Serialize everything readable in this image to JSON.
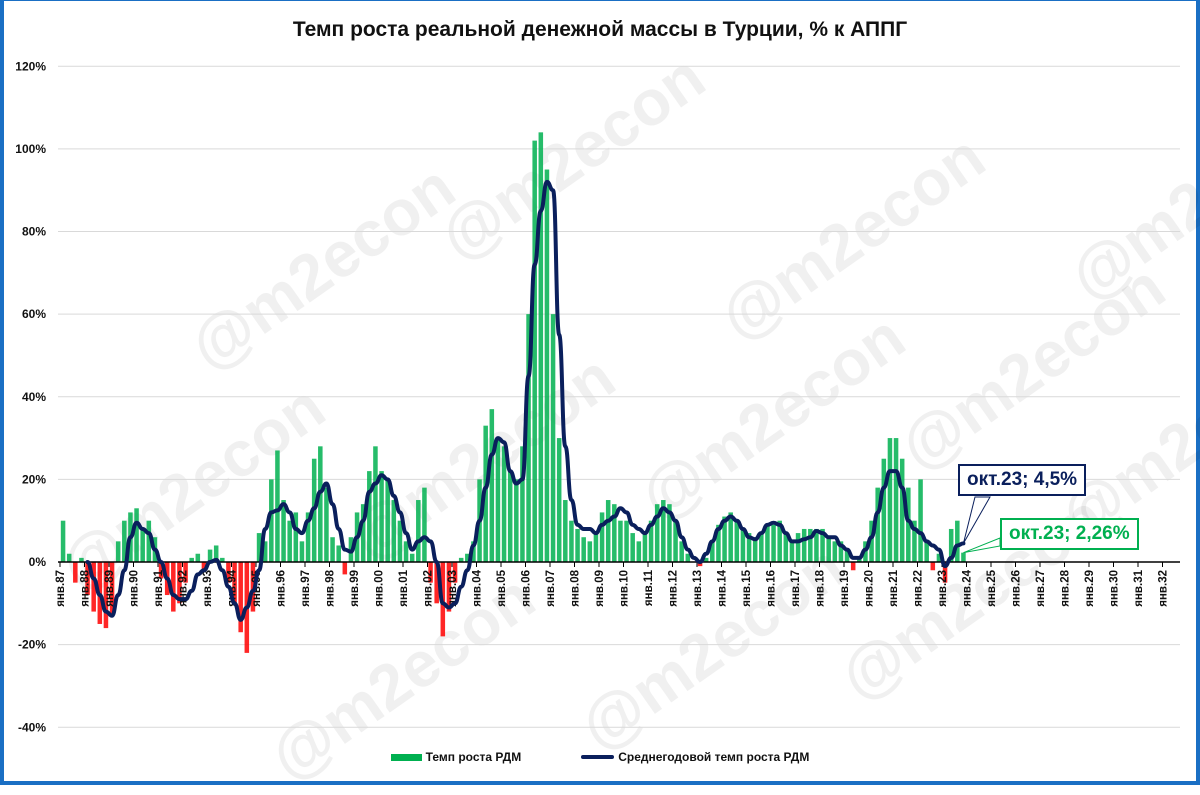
{
  "title": "Темп роста реальной денежной массы в Турции, % к АППГ",
  "watermark": "@m2econ",
  "legend": {
    "bars": "Темп роста РДМ",
    "line": "Среднегодовой темп роста РДМ"
  },
  "annotations": {
    "line_last": "окт.23; 4,5%",
    "bar_last": "окт.23; 2,26%"
  },
  "colors": {
    "positive": "#00b050",
    "negative": "#ff0000",
    "line": "#0a1f5c",
    "frame": "#1a6fc4"
  },
  "chart_data": {
    "type": "bar",
    "title": "Темп роста реальной денежной массы в Турции, % к АППГ",
    "ylabel": "%",
    "xlabel": "",
    "ylim": [
      -40,
      120
    ],
    "yticks": [
      "-40%",
      "-20%",
      "0%",
      "20%",
      "40%",
      "60%",
      "80%",
      "100%",
      "120%"
    ],
    "ytick_values": [
      -40,
      -20,
      0,
      20,
      40,
      60,
      80,
      100,
      120
    ],
    "xticks": [
      "янв.87",
      "янв.88",
      "янв.89",
      "янв.90",
      "янв.91",
      "янв.92",
      "янв.93",
      "янв.94",
      "янв.95",
      "янв.96",
      "янв.97",
      "янв.98",
      "янв.99",
      "янв.00",
      "янв.01",
      "янв.02",
      "янв.03",
      "янв.04",
      "янв.05",
      "янв.06",
      "янв.07",
      "янв.08",
      "янв.09",
      "янв.10",
      "янв.11",
      "янв.12",
      "янв.13",
      "янв.14",
      "янв.15",
      "янв.16",
      "янв.17",
      "янв.18",
      "янв.19",
      "янв.20",
      "янв.21",
      "янв.22",
      "янв.23",
      "янв.24",
      "янв.25",
      "янв.26",
      "янв.27",
      "янв.28",
      "янв.29",
      "янв.30",
      "янв.31",
      "янв.32"
    ],
    "grid": true,
    "legend_position": "bottom",
    "start_year": 1987,
    "frequency": "quarterly (approx.)",
    "series": [
      {
        "name": "Темп роста РДМ",
        "kind": "bar",
        "start": 1987.0,
        "values": [
          10,
          2,
          -5,
          1,
          -8,
          -12,
          -15,
          -16,
          -13,
          5,
          10,
          12,
          13,
          8,
          10,
          6,
          -4,
          -8,
          -12,
          -10,
          -5,
          1,
          2,
          -2,
          3,
          4,
          1,
          -5,
          -10,
          -17,
          -22,
          -12,
          7,
          5,
          20,
          27,
          15,
          10,
          12,
          5,
          12,
          25,
          28,
          18,
          6,
          4,
          -3,
          6,
          12,
          14,
          22,
          28,
          22,
          20,
          15,
          10,
          5,
          2,
          15,
          18,
          -5,
          -10,
          -18,
          -12,
          -5,
          1,
          2,
          5,
          20,
          33,
          37,
          30,
          28,
          22,
          20,
          28,
          60,
          102,
          104,
          95,
          60,
          30,
          15,
          10,
          8,
          6,
          5,
          7,
          12,
          15,
          14,
          10,
          10,
          7,
          5,
          7,
          10,
          14,
          15,
          14,
          10,
          5,
          2,
          0,
          -1,
          1,
          5,
          9,
          11,
          12,
          10,
          8,
          7,
          6,
          7,
          9,
          9,
          10,
          7,
          5,
          7,
          8,
          8,
          8,
          8,
          6,
          5,
          5,
          3,
          -2,
          1,
          5,
          10,
          18,
          25,
          30,
          30,
          25,
          18,
          10,
          20,
          5,
          -2,
          2,
          -5,
          8,
          10,
          2.26
        ]
      },
      {
        "name": "Среднегодовой темп роста РДМ",
        "kind": "line",
        "start": 1988.0,
        "values": [
          0,
          -4,
          -8,
          -12,
          -13,
          -8,
          -2,
          6,
          9.5,
          8,
          7,
          3,
          0,
          -4,
          -8,
          -9,
          -9,
          -7,
          -3,
          -2,
          0,
          0.5,
          -2,
          -6,
          -10,
          -14,
          -11,
          -7,
          -2,
          8,
          12,
          12.5,
          14,
          12,
          8,
          7,
          10,
          13,
          17,
          19,
          14,
          8,
          3,
          2.5,
          6,
          10,
          17,
          19,
          21,
          20,
          16,
          12,
          7,
          3,
          5,
          6,
          5,
          0,
          -10,
          -11,
          -10,
          -6,
          -2,
          4,
          10,
          18,
          26,
          30,
          29,
          22,
          19,
          20,
          45,
          72,
          85,
          92,
          90,
          55,
          28,
          15,
          9,
          8,
          8,
          7,
          9,
          10,
          11,
          13,
          12,
          9,
          8,
          7,
          9,
          11,
          13,
          12,
          10,
          6,
          3,
          1,
          0,
          2,
          5,
          8,
          10,
          11,
          10,
          8,
          6,
          5.5,
          7,
          9,
          9.5,
          9,
          7,
          5,
          5,
          5.5,
          6,
          7.5,
          7,
          6,
          6,
          4,
          3,
          1,
          1,
          3,
          6,
          12,
          18,
          22,
          22,
          18,
          10,
          8,
          7,
          5,
          4,
          3,
          -1,
          1,
          4,
          4.5
        ]
      }
    ]
  }
}
